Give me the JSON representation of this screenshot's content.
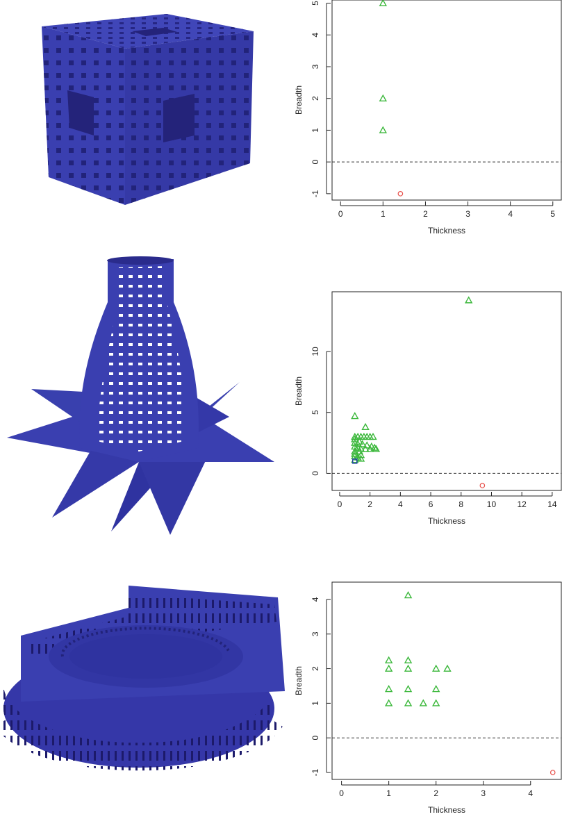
{
  "colors": {
    "shape_main": "#3a3fb0",
    "shape_dark": "#2a2b8c",
    "shape_hole": "#1c1a6a",
    "triangle": "#3cb83c",
    "circle": "#e8504a",
    "square": "#1f3ca8"
  },
  "renders": [
    {
      "subject": "menger-sponge-cube"
    },
    {
      "subject": "lotus-vase"
    },
    {
      "subject": "colosseum"
    }
  ],
  "chart_data": [
    {
      "type": "scatter",
      "title": "",
      "xlabel": "Thickness",
      "ylabel": "Breadth",
      "xlim": [
        -0.2,
        5.2
      ],
      "ylim": [
        -1.2,
        5.1
      ],
      "xticks": [
        0,
        1,
        2,
        3,
        4,
        5
      ],
      "yticks": [
        -1,
        0,
        1,
        2,
        3,
        4,
        5
      ],
      "hline": 0,
      "series": [
        {
          "marker": "triangle",
          "color": "#3cb83c",
          "points": [
            [
              1,
              5
            ],
            [
              1,
              2
            ],
            [
              1,
              1
            ]
          ]
        },
        {
          "marker": "circle",
          "color": "#e8504a",
          "points": [
            [
              1.41,
              -1
            ]
          ]
        }
      ]
    },
    {
      "type": "scatter",
      "title": "",
      "xlabel": "Thickness",
      "ylabel": "Breadth",
      "xlim": [
        -0.5,
        14.6
      ],
      "ylim": [
        -1.4,
        14.9
      ],
      "xticks": [
        0,
        2,
        4,
        6,
        8,
        10,
        12,
        14
      ],
      "yticks": [
        0,
        5,
        10
      ],
      "hline": 0,
      "series": [
        {
          "marker": "triangle",
          "color": "#3cb83c",
          "points": [
            [
              8.5,
              14.2
            ],
            [
              1,
              4.7
            ],
            [
              1.7,
              3.8
            ],
            [
              1,
              3
            ],
            [
              1.2,
              3
            ],
            [
              1.4,
              3
            ],
            [
              1.6,
              3
            ],
            [
              1.8,
              3
            ],
            [
              2,
              3
            ],
            [
              2.2,
              3
            ],
            [
              1,
              2.8
            ],
            [
              1.3,
              2.6
            ],
            [
              1,
              2.5
            ],
            [
              1.2,
              2.4
            ],
            [
              1.5,
              2.4
            ],
            [
              1.8,
              2.3
            ],
            [
              2.1,
              2.2
            ],
            [
              2.3,
              2.1
            ],
            [
              1,
              2.2
            ],
            [
              1.2,
              2.1
            ],
            [
              1.4,
              2
            ],
            [
              1.7,
              2
            ],
            [
              2,
              2
            ],
            [
              2.4,
              2
            ],
            [
              1,
              1.8
            ],
            [
              1.3,
              1.8
            ],
            [
              1,
              1.6
            ],
            [
              1.4,
              1.5
            ],
            [
              1,
              1.4
            ],
            [
              1.2,
              1.3
            ],
            [
              1.4,
              1.2
            ],
            [
              1,
              1.1
            ]
          ]
        },
        {
          "marker": "square",
          "color": "#1f3ca8",
          "points": [
            [
              1,
              1
            ]
          ]
        },
        {
          "marker": "circle",
          "color": "#e8504a",
          "points": [
            [
              9.4,
              -1
            ]
          ]
        }
      ]
    },
    {
      "type": "scatter",
      "title": "",
      "xlabel": "Thickness",
      "ylabel": "Breadth",
      "xlim": [
        -0.2,
        4.65
      ],
      "ylim": [
        -1.2,
        4.5
      ],
      "xticks": [
        0,
        1,
        2,
        3,
        4
      ],
      "yticks": [
        -1,
        0,
        1,
        2,
        3,
        4
      ],
      "hline": 0,
      "series": [
        {
          "marker": "triangle",
          "color": "#3cb83c",
          "points": [
            [
              1.41,
              4.12
            ],
            [
              1,
              2.24
            ],
            [
              1.41,
              2.24
            ],
            [
              1,
              2
            ],
            [
              1.41,
              2
            ],
            [
              2,
              2
            ],
            [
              2.24,
              2
            ],
            [
              1,
              1.41
            ],
            [
              1.41,
              1.41
            ],
            [
              2,
              1.41
            ],
            [
              1,
              1
            ],
            [
              1.41,
              1
            ],
            [
              1.73,
              1
            ],
            [
              2,
              1
            ]
          ]
        },
        {
          "marker": "circle",
          "color": "#e8504a",
          "points": [
            [
              4.47,
              -1
            ]
          ]
        }
      ]
    }
  ]
}
